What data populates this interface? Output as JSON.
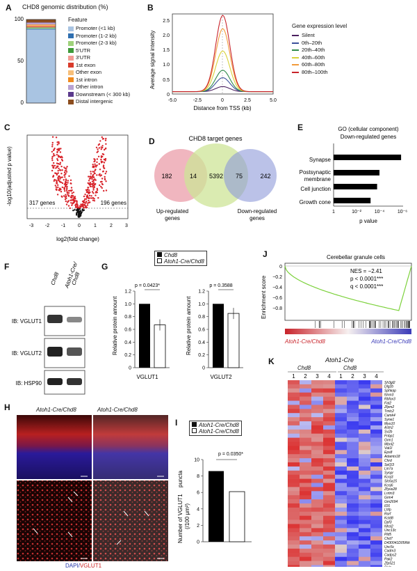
{
  "panels": {
    "A": {
      "letter": "A",
      "title": "CHD8 genomic distribution (%)",
      "legend_title": "Feature",
      "y_ticks": [
        "0",
        "50",
        "100"
      ],
      "features": [
        {
          "label": "Promoter (<1 kb)",
          "color": "#a9c4e2",
          "value": 88
        },
        {
          "label": "Promoter (1-2 kb)",
          "color": "#2f6fb0",
          "value": 1
        },
        {
          "label": "Promoter (2-3 kb)",
          "color": "#9fd27b",
          "value": 1
        },
        {
          "label": "5'UTR",
          "color": "#3f9a3a",
          "value": 0.5
        },
        {
          "label": "3'UTR",
          "color": "#f29b94",
          "value": 0.5
        },
        {
          "label": "1st exon",
          "color": "#d93b2b",
          "value": 1
        },
        {
          "label": "Other exon",
          "color": "#f7bf7a",
          "value": 1
        },
        {
          "label": "1st intron",
          "color": "#f08a1f",
          "value": 1
        },
        {
          "label": "Other intron",
          "color": "#b8a2d2",
          "value": 2
        },
        {
          "label": "Downstream (< 300 kb)",
          "color": "#5b3a8c",
          "value": 0.5
        },
        {
          "label": "Distal intergenic",
          "color": "#8c4d1e",
          "value": 3.5
        }
      ]
    },
    "B": {
      "letter": "B",
      "ylabel": "Average signal intensity",
      "xlabel": "Distance from TSS (kb)",
      "legend_title": "Gene expression level",
      "x_ticks": [
        "-5.0",
        "-2.5",
        "0",
        "2.5",
        "5.0"
      ],
      "y_ticks": [
        "0",
        "0.5",
        "1.0",
        "1.5",
        "2.0",
        "2.5"
      ]
    },
    "C": {
      "letter": "C",
      "ylabel": "-log10(adjusted p value)",
      "xlabel": "log2(fold change)",
      "x_ticks": [
        "-3",
        "-2",
        "-1",
        "0",
        "1",
        "2",
        "3"
      ],
      "left_count": "317 genes",
      "right_count": "196 genes"
    },
    "D": {
      "letter": "D",
      "title": "CHD8 target genes",
      "n_up_only": "182",
      "n_up_overlap": "14",
      "n_target": "5392",
      "n_down_overlap": "75",
      "n_down_only": "242",
      "label_up": "Up-regulated",
      "label_up2": "genes",
      "label_down": "Down-regulated",
      "label_down2": "genes"
    },
    "E": {
      "letter": "E",
      "title": "GO (cellular component)",
      "subtitle": "Down-regulated genes",
      "xlabel": "p value",
      "terms": [
        "Synapse",
        "Postsynaptic",
        "membrane",
        "Cell junction",
        "Growth cone"
      ]
    },
    "F": {
      "letter": "F",
      "col1": "Chd8",
      "col2a": "Atoh1-Cre/",
      "col2b": "Chd8",
      "rows": [
        "IB: VGLUT1",
        "IB: VGLUT2",
        "IB: HSP90"
      ]
    },
    "G": {
      "letter": "G",
      "legend1": "Chd8",
      "legend2": "Atoh1-Cre/Chd8",
      "ylabel": "Relative protein amount",
      "p1": "p = 0.0423*",
      "p2": "p = 0.3588",
      "x1": "VGLUT1",
      "x2": "VGLUT2",
      "y_ticks": [
        "0",
        "0.2",
        "0.4",
        "0.6",
        "0.8",
        "1.0",
        "1.2"
      ]
    },
    "H": {
      "letter": "H",
      "cond1": "Atoh1-Cre/Chd8",
      "cond2": "Atoh1-Cre/Chd8",
      "stain1": "DAPI/",
      "stain2": "VGLUT1"
    },
    "I": {
      "letter": "I",
      "legend1": "Atoh1-Cre/Chd8",
      "legend2": "Atoh1-Cre/Chd8",
      "ylabel1": "Number of VGLUT1",
      "ylabel2": "puncta",
      "ylabel3": "(/100 μm²)",
      "p": "p = 0.0350*",
      "y_ticks": [
        "0",
        "2",
        "4",
        "6",
        "8",
        "10"
      ]
    },
    "J": {
      "letter": "J",
      "title": "Cerebellar granule cells",
      "ylabel": "Enrichment score",
      "nes": "NES = −2.41",
      "p": "p < 0.0001***",
      "q": "q < 0.0001***",
      "y_ticks": [
        "0",
        "−0.2",
        "−0.4",
        "−0.6",
        "−0.8"
      ],
      "left_label": "Atoh1-Cre/Chd8",
      "right_label": "Atoh1-Cre/Chd8"
    },
    "K": {
      "letter": "K",
      "header": "Atoh1-Cre",
      "group1": "Chd8",
      "group2": "Chd8",
      "cols": [
        "1",
        "2",
        "3",
        "4",
        "1",
        "2",
        "3",
        "4"
      ],
      "genes": [
        "Sh3gl2",
        "Dlg2b",
        "Sphkap",
        "Nrxn3",
        "Rbfox3",
        "Fat2",
        "Zfpm2",
        "Tmtc2",
        "Camk4",
        "Syne1",
        "Myo10",
        "Astn2",
        "Sv2b",
        "Fnbp1",
        "Grm1",
        "Mbnl2",
        "Vat1l",
        "Eps8",
        "Adamts18",
        "Chrd",
        "Sel1l3",
        "Lin7a",
        "Synpr",
        "Kcnj3",
        "Slc6a15",
        "Kcnj6",
        "Zfyve28",
        "Lrrtm3",
        "Grm4",
        "Gm2694",
        "Il16",
        "Lhfp",
        "Rorf",
        "Kctd8",
        "Dpf3",
        "Nhsl2",
        "Unc13c",
        "Pld5",
        "Chd7",
        "D430041D05Rik",
        "Unc5c",
        "Cadm3",
        "Cadps2",
        "Pak2",
        "Zfp521",
        "Reln"
      ]
    }
  },
  "chart_data": [
    {
      "type": "bar",
      "panel": "A",
      "title": "CHD8 genomic distribution (%)",
      "categories": [
        "Promoter (<1 kb)",
        "Promoter (1-2 kb)",
        "Promoter (2-3 kb)",
        "5'UTR",
        "3'UTR",
        "1st exon",
        "Other exon",
        "1st intron",
        "Other intron",
        "Downstream (< 300 kb)",
        "Distal intergenic"
      ],
      "values": [
        88,
        1,
        1,
        0.5,
        0.5,
        1,
        1,
        1,
        2,
        0.5,
        3.5
      ],
      "ylim": [
        0,
        100
      ]
    },
    {
      "type": "line",
      "panel": "B",
      "xlabel": "Distance from TSS (kb)",
      "ylabel": "Average signal intensity",
      "xlim": [
        -5,
        5
      ],
      "ylim": [
        0,
        2.7
      ],
      "series": [
        {
          "name": "Silent",
          "peak": 0.25,
          "color": "#4a1f5e"
        },
        {
          "name": "0th–20th",
          "peak": 0.55,
          "color": "#3a4f9a"
        },
        {
          "name": "20th–40th",
          "peak": 0.8,
          "color": "#2f8a4a"
        },
        {
          "name": "40th–60th",
          "peak": 1.45,
          "color": "#d8d23a"
        },
        {
          "name": "60th–80th",
          "peak": 2.2,
          "color": "#f29a3a"
        },
        {
          "name": "80th–100th",
          "peak": 2.65,
          "color": "#c8232a"
        }
      ]
    },
    {
      "type": "bar",
      "panel": "E",
      "xlabel": "p value",
      "categories": [
        "Synapse",
        "Postsynaptic membrane",
        "Cell junction",
        "Growth cone"
      ],
      "values": [
        1.3e-06,
        0.0001,
        0.00016,
        0.0006
      ],
      "x_ticks": [
        "1",
        "10⁻²",
        "10⁻⁴",
        "10⁻⁶"
      ]
    },
    {
      "type": "bar",
      "panel": "G",
      "ylabel": "Relative protein amount",
      "ylim": [
        0,
        1.2
      ],
      "categories": [
        "VGLUT1",
        "VGLUT2"
      ],
      "series": [
        {
          "name": "Chd8",
          "values": [
            1.0,
            1.0
          ]
        },
        {
          "name": "Atoh1-Cre/Chd8",
          "values": [
            0.67,
            0.85
          ]
        }
      ]
    },
    {
      "type": "bar",
      "panel": "I",
      "ylim": [
        0,
        10
      ],
      "series": [
        {
          "name": "Atoh1-Cre/Chd8",
          "values": [
            8.6
          ]
        },
        {
          "name": "Atoh1-Cre/Chd8",
          "values": [
            6.1
          ]
        }
      ]
    }
  ]
}
